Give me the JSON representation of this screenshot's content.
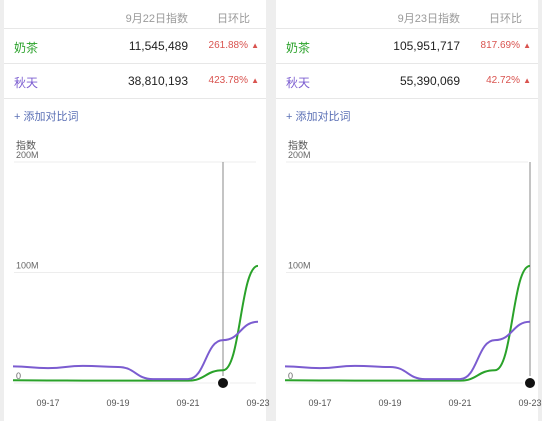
{
  "panels": [
    {
      "header": {
        "date_label": "9月22日指数",
        "ratio_label": "日环比"
      },
      "rows": [
        {
          "keyword": "奶茶",
          "value": "11,545,489",
          "change": "261.88%",
          "arrow": "▲",
          "color": "#2aa22a"
        },
        {
          "keyword": "秋天",
          "value": "38,810,193",
          "change": "423.78%",
          "arrow": "▲",
          "color": "#7b5cd0"
        }
      ],
      "add_label": "+ 添加对比词",
      "chart_data": {
        "type": "line",
        "ylabel": "指数",
        "ylim": [
          0,
          200000000
        ],
        "y_ticks": [
          {
            "value": 0,
            "label": "0"
          },
          {
            "value": 100000000,
            "label": "100M"
          },
          {
            "value": 200000000,
            "label": "200M"
          }
        ],
        "x_ticks": [
          "09-17",
          "09-19",
          "09-21",
          "09-23"
        ],
        "x": [
          "09-16",
          "09-17",
          "09-18",
          "09-19",
          "09-20",
          "09-21",
          "09-22",
          "09-23"
        ],
        "cursor_x": "09-22",
        "series": [
          {
            "name": "奶茶",
            "color": "#2aa22a",
            "values": [
              2500000,
              2300000,
              2200000,
              2200000,
              2100000,
              2100000,
              11545489,
              105951717
            ]
          },
          {
            "name": "秋天",
            "color": "#7b5cd0",
            "values": [
              15000000,
              13500000,
              15500000,
              14500000,
              3500000,
              3500000,
              38810193,
              55390069
            ]
          }
        ]
      }
    },
    {
      "header": {
        "date_label": "9月23日指数",
        "ratio_label": "日环比"
      },
      "rows": [
        {
          "keyword": "奶茶",
          "value": "105,951,717",
          "change": "817.69%",
          "arrow": "▲",
          "color": "#2aa22a"
        },
        {
          "keyword": "秋天",
          "value": "55,390,069",
          "change": "42.72%",
          "arrow": "▲",
          "color": "#7b5cd0"
        }
      ],
      "add_label": "+ 添加对比词",
      "chart_data": {
        "type": "line",
        "ylabel": "指数",
        "ylim": [
          0,
          200000000
        ],
        "y_ticks": [
          {
            "value": 0,
            "label": "0"
          },
          {
            "value": 100000000,
            "label": "100M"
          },
          {
            "value": 200000000,
            "label": "200M"
          }
        ],
        "x_ticks": [
          "09-17",
          "09-19",
          "09-21",
          "09-23"
        ],
        "x": [
          "09-16",
          "09-17",
          "09-18",
          "09-19",
          "09-20",
          "09-21",
          "09-22",
          "09-23"
        ],
        "cursor_x": "09-23",
        "series": [
          {
            "name": "奶茶",
            "color": "#2aa22a",
            "values": [
              2500000,
              2300000,
              2200000,
              2200000,
              2100000,
              2100000,
              11545489,
              105951717
            ]
          },
          {
            "name": "秋天",
            "color": "#7b5cd0",
            "values": [
              15000000,
              13500000,
              15500000,
              14500000,
              3500000,
              3500000,
              38810193,
              55390069
            ]
          }
        ]
      }
    }
  ]
}
